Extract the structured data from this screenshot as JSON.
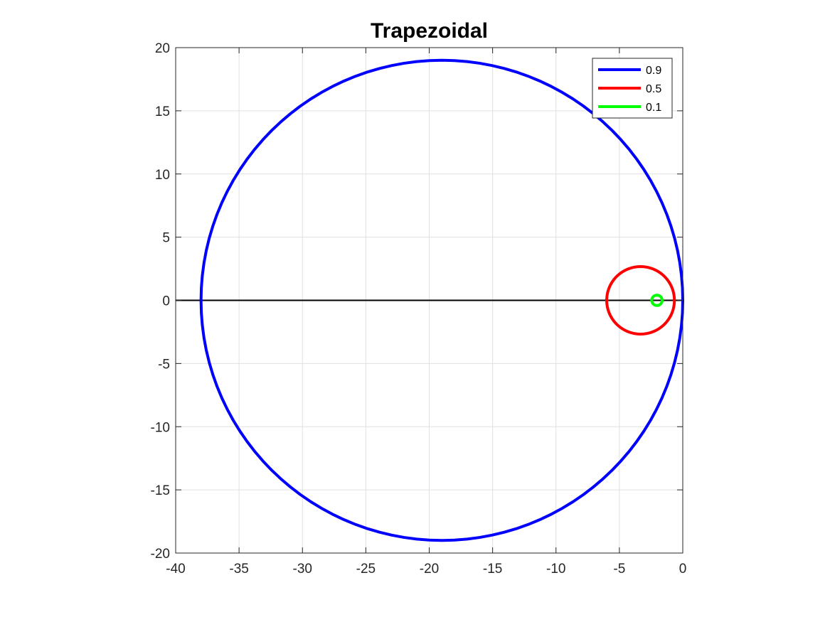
{
  "chart_data": {
    "type": "line",
    "title": "Trapezoidal",
    "xlabel": "",
    "ylabel": "",
    "xlim": [
      -40,
      0
    ],
    "ylim": [
      -20,
      20
    ],
    "xticks": [
      -40,
      -35,
      -30,
      -25,
      -20,
      -15,
      -10,
      -5,
      0
    ],
    "yticks": [
      -20,
      -15,
      -10,
      -5,
      0,
      5,
      10,
      15,
      20
    ],
    "xtick_labels": [
      "-40",
      "-35",
      "-30",
      "-25",
      "-20",
      "-15",
      "-10",
      "-5",
      "0"
    ],
    "ytick_labels": [
      "-20",
      "-15",
      "-10",
      "-5",
      "0",
      "5",
      "10",
      "15",
      "20"
    ],
    "grid": true,
    "legend_position": "top-right",
    "reference_line": {
      "y": 0,
      "x_range": [
        -40,
        0
      ],
      "color": "#000000"
    },
    "series": [
      {
        "name": "0.9",
        "shape": "circle",
        "center": [
          -19,
          0
        ],
        "radius": 19,
        "color": "#0000ff"
      },
      {
        "name": "0.5",
        "shape": "circle",
        "center": [
          -3.33,
          0
        ],
        "radius": 2.67,
        "color": "#ff0000"
      },
      {
        "name": "0.1",
        "shape": "circle",
        "center": [
          -2.04,
          0
        ],
        "radius": 0.41,
        "color": "#00ff00"
      }
    ]
  }
}
